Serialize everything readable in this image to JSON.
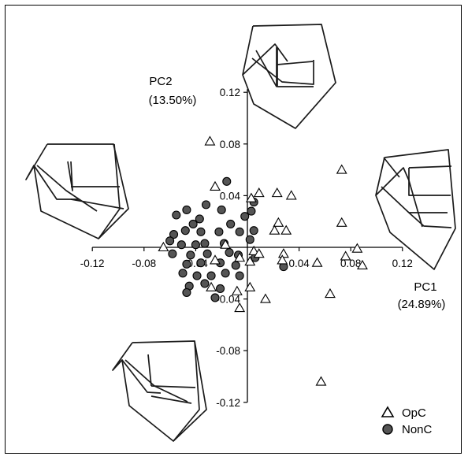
{
  "chart_data": {
    "type": "scatter",
    "title": "",
    "xlabel": "PC1",
    "xlabel_pct": "(24.89%)",
    "ylabel": "PC2",
    "ylabel_pct": "(13.50%)",
    "xlim": [
      -0.12,
      0.12
    ],
    "ylim": [
      -0.12,
      0.12
    ],
    "x_ticks": [
      "-0.12",
      "-0.08",
      "-0.04",
      "0.04",
      "0.08",
      "0.12"
    ],
    "x_tick_values": [
      -0.12,
      -0.08,
      -0.04,
      0.04,
      0.08,
      0.12
    ],
    "y_ticks": [
      "0.12",
      "0.08",
      "0.04",
      "-0.04",
      "-0.08",
      "-0.12"
    ],
    "y_tick_values": [
      0.12,
      0.08,
      0.04,
      -0.04,
      -0.08,
      -0.12
    ],
    "legend_position": "bottom-right",
    "series": [
      {
        "name": "OpC",
        "marker": "triangle-open",
        "color": "#000000",
        "points": [
          [
            -0.029,
            0.082
          ],
          [
            -0.025,
            0.047
          ],
          [
            0.003,
            0.038
          ],
          [
            0.009,
            0.042
          ],
          [
            0.023,
            0.042
          ],
          [
            0.034,
            0.04
          ],
          [
            0.073,
            0.06
          ],
          [
            0.073,
            0.019
          ],
          [
            0.024,
            0.019
          ],
          [
            0.021,
            0.013
          ],
          [
            0.03,
            0.013
          ],
          [
            -0.065,
            0.0
          ],
          [
            -0.017,
            0.002
          ],
          [
            -0.025,
            -0.01
          ],
          [
            -0.006,
            -0.008
          ],
          [
            0.002,
            -0.011
          ],
          [
            0.005,
            -0.003
          ],
          [
            0.009,
            -0.005
          ],
          [
            0.028,
            -0.005
          ],
          [
            0.027,
            -0.01
          ],
          [
            0.054,
            -0.012
          ],
          [
            0.076,
            -0.007
          ],
          [
            0.085,
            -0.001
          ],
          [
            0.089,
            -0.014
          ],
          [
            0.064,
            -0.036
          ],
          [
            -0.028,
            -0.031
          ],
          [
            -0.008,
            -0.034
          ],
          [
            0.002,
            -0.031
          ],
          [
            0.014,
            -0.04
          ],
          [
            -0.006,
            -0.047
          ],
          [
            0.057,
            -0.104
          ]
        ]
      },
      {
        "name": "NonC",
        "marker": "circle-filled",
        "color": "#555555",
        "points": [
          [
            -0.016,
            0.051
          ],
          [
            -0.032,
            0.033
          ],
          [
            -0.047,
            0.029
          ],
          [
            -0.055,
            0.025
          ],
          [
            -0.02,
            0.029
          ],
          [
            -0.002,
            0.024
          ],
          [
            0.005,
            0.035
          ],
          [
            0.003,
            0.028
          ],
          [
            -0.037,
            0.022
          ],
          [
            -0.042,
            0.018
          ],
          [
            -0.013,
            0.018
          ],
          [
            -0.048,
            0.013
          ],
          [
            -0.057,
            0.01
          ],
          [
            -0.036,
            0.012
          ],
          [
            -0.022,
            0.012
          ],
          [
            -0.006,
            0.012
          ],
          [
            0.005,
            0.013
          ],
          [
            -0.06,
            0.005
          ],
          [
            -0.051,
            0.002
          ],
          [
            -0.04,
            0.002
          ],
          [
            -0.033,
            0.003
          ],
          [
            -0.018,
            0.003
          ],
          [
            -0.058,
            -0.005
          ],
          [
            -0.044,
            -0.006
          ],
          [
            -0.031,
            -0.005
          ],
          [
            -0.014,
            -0.004
          ],
          [
            -0.007,
            -0.006
          ],
          [
            0.006,
            -0.008
          ],
          [
            -0.047,
            -0.013
          ],
          [
            -0.036,
            -0.012
          ],
          [
            -0.021,
            -0.012
          ],
          [
            -0.009,
            -0.014
          ],
          [
            -0.05,
            -0.02
          ],
          [
            -0.039,
            -0.022
          ],
          [
            -0.028,
            -0.022
          ],
          [
            -0.017,
            -0.02
          ],
          [
            -0.006,
            -0.022
          ],
          [
            -0.045,
            -0.03
          ],
          [
            -0.033,
            -0.028
          ],
          [
            -0.021,
            -0.032
          ],
          [
            -0.047,
            -0.035
          ],
          [
            -0.025,
            -0.039
          ],
          [
            0.028,
            -0.015
          ],
          [
            0.002,
            0.006
          ]
        ]
      }
    ],
    "shape_diagrams": [
      {
        "position": "top"
      },
      {
        "position": "left"
      },
      {
        "position": "right"
      },
      {
        "position": "bottom"
      }
    ]
  }
}
